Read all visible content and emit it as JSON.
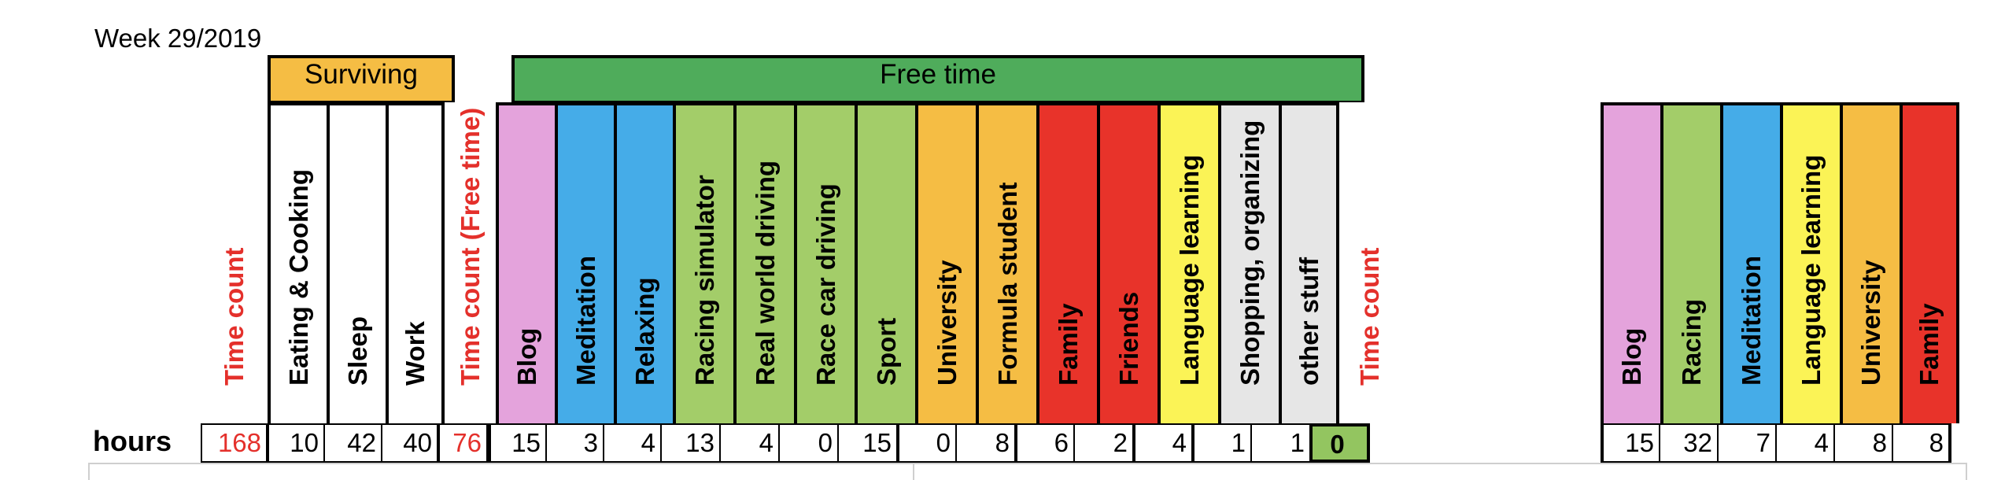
{
  "week_title": "Week 29/2019",
  "groups": {
    "surviving": {
      "label": "Surviving",
      "color": "#f5bd44"
    },
    "free_time": {
      "label": "Free time",
      "color": "#4fac5b"
    }
  },
  "row_label": "hours",
  "main_columns": [
    {
      "label": "Time count",
      "value": "168",
      "bg": "#ffffff",
      "text": "red"
    },
    {
      "label": "Eating & Cooking",
      "value": "10",
      "bg": "#ffffff",
      "text": "black"
    },
    {
      "label": "Sleep",
      "value": "42",
      "bg": "#ffffff",
      "text": "black"
    },
    {
      "label": "Work",
      "value": "40",
      "bg": "#ffffff",
      "text": "black"
    },
    {
      "label": "Time count (Free time)",
      "value": "76",
      "bg": "#ffffff",
      "text": "red"
    },
    {
      "label": "Blog",
      "value": "15",
      "bg": "#e4a3dc",
      "text": "black"
    },
    {
      "label": "Meditation",
      "value": "3",
      "bg": "#45ace8",
      "text": "black"
    },
    {
      "label": "Relaxing",
      "value": "4",
      "bg": "#45ace8",
      "text": "black"
    },
    {
      "label": "Racing simulator",
      "value": "13",
      "bg": "#a3cd69",
      "text": "black"
    },
    {
      "label": "Real world driving",
      "value": "4",
      "bg": "#a3cd69",
      "text": "black"
    },
    {
      "label": "Race car driving",
      "value": "0",
      "bg": "#a3cd69",
      "text": "black"
    },
    {
      "label": "Sport",
      "value": "15",
      "bg": "#a3cd69",
      "text": "black"
    },
    {
      "label": "University",
      "value": "0",
      "bg": "#f5bd44",
      "text": "black"
    },
    {
      "label": "Formula student",
      "value": "8",
      "bg": "#f5bd44",
      "text": "black"
    },
    {
      "label": "Family",
      "value": "6",
      "bg": "#e8332a",
      "text": "black"
    },
    {
      "label": "Friends",
      "value": "2",
      "bg": "#e8332a",
      "text": "black"
    },
    {
      "label": "Language learning",
      "value": "4",
      "bg": "#fbf356",
      "text": "black"
    },
    {
      "label": "Shopping, organizing",
      "value": "1",
      "bg": "#e6e6e6",
      "text": "black"
    },
    {
      "label": "other stuff",
      "value": "1",
      "bg": "#e6e6e6",
      "text": "black"
    },
    {
      "label": "Time count",
      "value": "0",
      "bg": "#ffffff",
      "text": "red",
      "value_bg": "#93c560"
    }
  ],
  "summary_columns": [
    {
      "label": "Blog",
      "value": "15",
      "bg": "#e4a3dc"
    },
    {
      "label": "Racing",
      "value": "32",
      "bg": "#a3cd69"
    },
    {
      "label": "Meditation",
      "value": "7",
      "bg": "#45ace8"
    },
    {
      "label": "Language learning",
      "value": "4",
      "bg": "#fbf356"
    },
    {
      "label": "University",
      "value": "8",
      "bg": "#f5bd44"
    },
    {
      "label": "Family",
      "value": "8",
      "bg": "#e8332a"
    }
  ]
}
